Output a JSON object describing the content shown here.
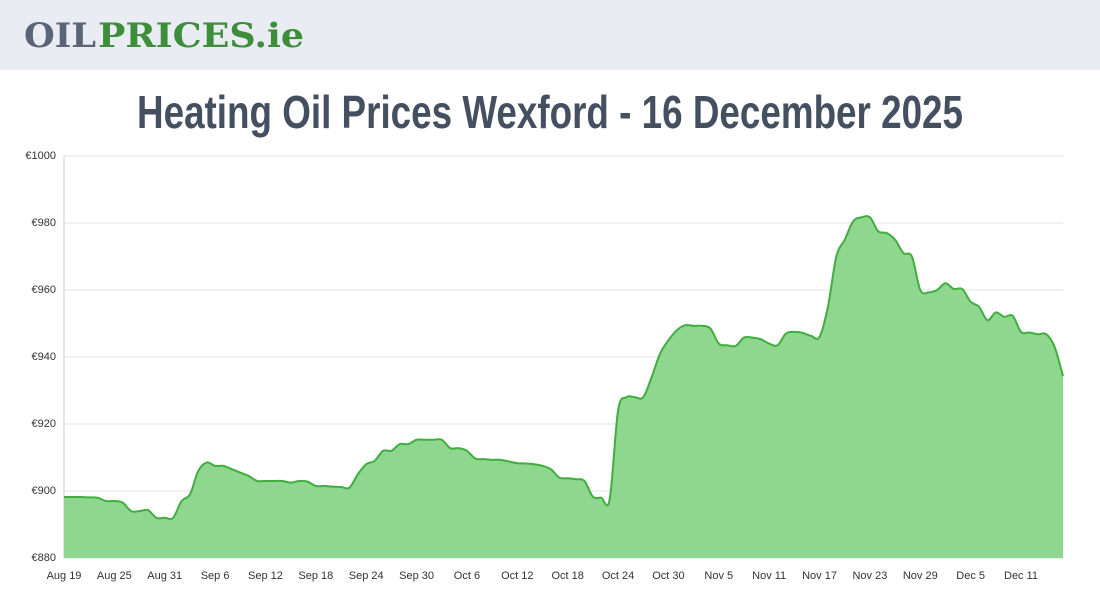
{
  "header": {
    "logo": [
      "OIL",
      "PRICES.ie"
    ]
  },
  "chart_data": {
    "type": "area",
    "title": "Heating Oil Prices Wexford - 16 December 2025",
    "color": "#3fae3f",
    "fill": "#8fd68f",
    "grid": true,
    "ylim": [
      880,
      1000
    ],
    "yticks": [
      {
        "value": 880,
        "label": "€880"
      },
      {
        "value": 900,
        "label": "€900"
      },
      {
        "value": 920,
        "label": "€920"
      },
      {
        "value": 940,
        "label": "€940"
      },
      {
        "value": 960,
        "label": "€960"
      },
      {
        "value": 980,
        "label": "€980"
      },
      {
        "value": 1000,
        "label": "€1000"
      }
    ],
    "categories": [
      "Aug 19",
      null,
      null,
      null,
      null,
      null,
      "Aug 25",
      null,
      null,
      null,
      null,
      null,
      "Aug 31",
      null,
      null,
      null,
      null,
      null,
      "Sep 6",
      null,
      null,
      null,
      null,
      null,
      "Sep 12",
      null,
      null,
      null,
      null,
      null,
      "Sep 18",
      null,
      null,
      null,
      null,
      null,
      "Sep 24",
      null,
      null,
      null,
      null,
      null,
      "Sep 30",
      null,
      null,
      null,
      null,
      null,
      "Oct 6",
      null,
      null,
      null,
      null,
      null,
      "Oct 12",
      null,
      null,
      null,
      null,
      null,
      "Oct 18",
      null,
      null,
      null,
      null,
      null,
      "Oct 24",
      null,
      null,
      null,
      null,
      null,
      "Oct 30",
      null,
      null,
      null,
      null,
      null,
      "Nov 5",
      null,
      null,
      null,
      null,
      null,
      "Nov 11",
      null,
      null,
      null,
      null,
      null,
      "Nov 17",
      null,
      null,
      null,
      null,
      null,
      "Nov 23",
      null,
      null,
      null,
      null,
      null,
      "Nov 29",
      null,
      null,
      null,
      null,
      null,
      "Dec 5",
      null,
      null,
      null,
      null,
      null,
      "Dec 11",
      null,
      null,
      null,
      null,
      null
    ],
    "values": [
      898.2,
      898.2,
      898.2,
      898.1,
      898.0,
      897.0,
      897.0,
      896.5,
      894.0,
      894.0,
      894.3,
      892.0,
      892.0,
      892.0,
      897.0,
      899.0,
      906.0,
      908.5,
      907.5,
      907.5,
      906.5,
      905.5,
      904.5,
      903.0,
      903.0,
      903.0,
      903.0,
      902.5,
      903.0,
      902.8,
      901.5,
      901.5,
      901.3,
      901.2,
      901.0,
      905.0,
      908.0,
      909.0,
      912.0,
      912.0,
      914.0,
      914.0,
      915.3,
      915.3,
      915.3,
      915.3,
      912.8,
      912.8,
      912.0,
      909.7,
      909.5,
      909.3,
      909.3,
      908.8,
      908.3,
      908.2,
      908.0,
      907.5,
      906.5,
      904.0,
      903.8,
      903.5,
      903.0,
      898.3,
      898.0,
      897.5,
      924.0,
      928.0,
      928.0,
      928.0,
      934.0,
      941.0,
      945.0,
      948.0,
      949.5,
      949.3,
      949.3,
      948.5,
      944.0,
      943.5,
      943.3,
      945.8,
      945.8,
      945.3,
      944.0,
      943.5,
      947.0,
      947.5,
      947.2,
      946.3,
      946.0,
      955.0,
      970.0,
      975.0,
      980.5,
      981.7,
      981.7,
      977.5,
      977.0,
      975.0,
      971.0,
      970.0,
      960.0,
      959.3,
      960.0,
      962.0,
      960.3,
      960.3,
      956.5,
      955.0,
      951.0,
      953.3,
      952.0,
      952.3,
      947.5,
      947.3,
      946.8,
      946.8,
      943.0,
      934.3
    ]
  }
}
